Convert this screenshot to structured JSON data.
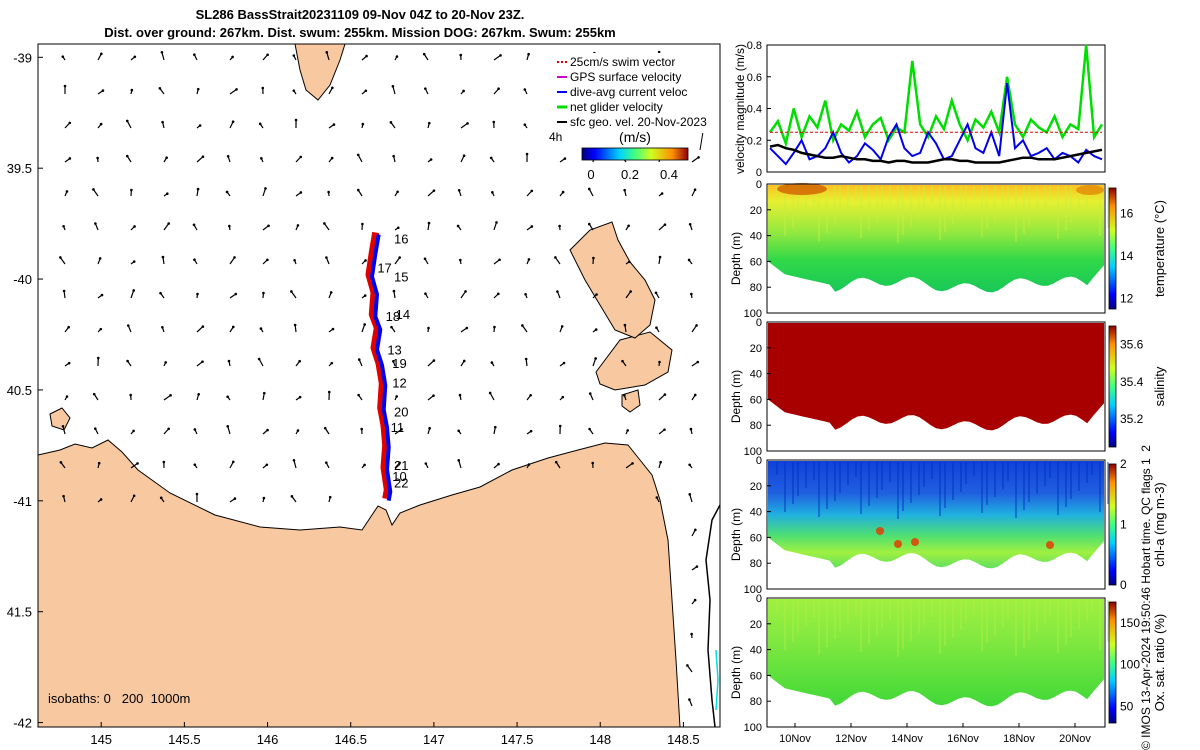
{
  "title": {
    "line1": "SL286 BassStrait20231109 09-Nov 04Z to 20-Nov 23Z.",
    "line2": "Dist. over ground: 267km. Dist. swum: 255km. Mission DOG: 267km. Swum: 255km"
  },
  "credit": "© IMOS 13-Apr-2024 19:50:46 Hobart time. QC flags 1  2",
  "colors": {
    "land": "#f8c8a0",
    "swim": "#e00000",
    "gps": "#cc00cc",
    "dive_avg": "#0000ee",
    "net": "#00dd00",
    "sfc": "#000000",
    "isobath": "#00dddd"
  },
  "chart_data": [
    {
      "type": "map",
      "x_ticks": [
        145,
        145.5,
        146,
        146.5,
        147,
        147.5,
        148,
        148.5
      ],
      "x_tick_labels": [
        "145",
        "145.5",
        "146",
        "146.5",
        "147",
        "147.5",
        "148",
        "148.5"
      ],
      "xlim": [
        144.62,
        148.72
      ],
      "y_ticks": [
        -39,
        -39.5,
        -40,
        -40.5,
        -41,
        -41.5,
        -42
      ],
      "y_tick_labels": [
        "-39",
        "39.5",
        "-40",
        "40.5",
        "-41",
        "41.5",
        "-42"
      ],
      "ylim": [
        -42.02,
        -38.94
      ],
      "legend": {
        "entries": [
          "25cm/s swim vector",
          "GPS surface velocity",
          "dive-avg current veloc",
          "net glider velocity",
          "sfc geo. vel. 20-Nov-2023"
        ],
        "time_label": "4h"
      },
      "colorbar": {
        "label": "(m/s)",
        "ticks": [
          "0",
          "0.2",
          "0.4"
        ],
        "range": [
          0,
          0.5
        ]
      },
      "isobath_label": "isobaths: 0   200  1000m",
      "day_labels": [
        {
          "label": "16",
          "lon": 146.76,
          "lat": -39.84
        },
        {
          "label": "17",
          "lon": 146.66,
          "lat": -39.97
        },
        {
          "label": "15",
          "lon": 146.76,
          "lat": -40.01
        },
        {
          "label": "18",
          "lon": 146.71,
          "lat": -40.19
        },
        {
          "label": "14",
          "lon": 146.77,
          "lat": -40.18
        },
        {
          "label": "13",
          "lon": 146.72,
          "lat": -40.34
        },
        {
          "label": "19",
          "lon": 146.75,
          "lat": -40.4
        },
        {
          "label": "12",
          "lon": 146.75,
          "lat": -40.49
        },
        {
          "label": "20",
          "lon": 146.76,
          "lat": -40.62
        },
        {
          "label": "11",
          "lon": 146.74,
          "lat": -40.69
        },
        {
          "label": "21",
          "lon": 146.76,
          "lat": -40.86
        },
        {
          "label": "10",
          "lon": 146.75,
          "lat": -40.91
        },
        {
          "label": "22",
          "lon": 146.76,
          "lat": -40.94
        }
      ],
      "track": [
        [
          146.65,
          -39.79
        ],
        [
          146.63,
          -39.88
        ],
        [
          146.61,
          -39.98
        ],
        [
          146.64,
          -40.06
        ],
        [
          146.63,
          -40.16
        ],
        [
          146.66,
          -40.22
        ],
        [
          146.64,
          -40.31
        ],
        [
          146.67,
          -40.38
        ],
        [
          146.69,
          -40.47
        ],
        [
          146.68,
          -40.58
        ],
        [
          146.7,
          -40.66
        ],
        [
          146.71,
          -40.75
        ],
        [
          146.7,
          -40.85
        ],
        [
          146.72,
          -40.95
        ],
        [
          146.71,
          -40.99
        ]
      ]
    },
    {
      "type": "line",
      "ylabel": "velocity magnitude (m/s)",
      "ylim": [
        0,
        0.8
      ],
      "y_ticks": [
        "0",
        "0.2",
        "0.4",
        "0.6",
        "0.8"
      ],
      "series": [
        {
          "name": "net glider velocity",
          "values": [
            0.25,
            0.32,
            0.18,
            0.4,
            0.22,
            0.35,
            0.28,
            0.45,
            0.2,
            0.3,
            0.26,
            0.38,
            0.22,
            0.3,
            0.34,
            0.2,
            0.28,
            0.25,
            0.7,
            0.3,
            0.22,
            0.35,
            0.27,
            0.45,
            0.3,
            0.2,
            0.33,
            0.28,
            0.38,
            0.25,
            0.6,
            0.3,
            0.22,
            0.33,
            0.28,
            0.25,
            0.35,
            0.22,
            0.3,
            0.27,
            0.8,
            0.22,
            0.3
          ]
        },
        {
          "name": "dive-avg current veloc",
          "values": [
            0.15,
            0.1,
            0.05,
            0.12,
            0.2,
            0.08,
            0.1,
            0.15,
            0.25,
            0.12,
            0.06,
            0.1,
            0.18,
            0.14,
            0.08,
            0.22,
            0.3,
            0.15,
            0.1,
            0.12,
            0.25,
            0.18,
            0.08,
            0.1,
            0.2,
            0.3,
            0.15,
            0.12,
            0.25,
            0.1,
            0.56,
            0.15,
            0.2,
            0.1,
            0.12,
            0.15,
            0.08,
            0.12,
            0.1,
            0.06,
            0.14,
            0.1,
            0.08
          ]
        },
        {
          "name": "sfc geo. vel.",
          "values": [
            0.16,
            0.17,
            0.15,
            0.14,
            0.12,
            0.11,
            0.1,
            0.09,
            0.09,
            0.1,
            0.09,
            0.08,
            0.08,
            0.07,
            0.07,
            0.06,
            0.07,
            0.07,
            0.06,
            0.06,
            0.06,
            0.07,
            0.08,
            0.08,
            0.07,
            0.07,
            0.06,
            0.06,
            0.06,
            0.06,
            0.07,
            0.08,
            0.09,
            0.09,
            0.08,
            0.08,
            0.08,
            0.09,
            0.1,
            0.11,
            0.12,
            0.13,
            0.14
          ]
        },
        {
          "name": "25cm/s reference",
          "values": [
            0.25,
            0.25
          ]
        }
      ]
    },
    {
      "type": "heatmap",
      "ylabel": "Depth (m)",
      "ylim": [
        0,
        100
      ],
      "y_ticks": [
        "0",
        "20",
        "40",
        "60",
        "80",
        "100"
      ],
      "clabel": "temperature (°C)",
      "c_ticks": [
        "12",
        "14",
        "16"
      ],
      "crange": [
        11.5,
        17.2
      ]
    },
    {
      "type": "heatmap",
      "ylabel": "Depth (m)",
      "ylim": [
        0,
        100
      ],
      "y_ticks": [
        "0",
        "20",
        "40",
        "60",
        "80",
        "100"
      ],
      "clabel": "salinity",
      "c_ticks": [
        "35.2",
        "35.4",
        "35.6"
      ],
      "crange": [
        35.05,
        35.7
      ]
    },
    {
      "type": "heatmap",
      "ylabel": "Depth (m)",
      "ylim": [
        0,
        100
      ],
      "y_ticks": [
        "0",
        "20",
        "40",
        "60",
        "80",
        "100"
      ],
      "clabel": "chl-a (mg m-3)",
      "c_ticks": [
        "0",
        "1",
        "2"
      ],
      "crange": [
        0,
        2
      ]
    },
    {
      "type": "heatmap",
      "ylabel": "Depth (m)",
      "ylim": [
        0,
        100
      ],
      "y_ticks": [
        "0",
        "20",
        "40",
        "60",
        "80",
        "100"
      ],
      "clabel": "Ox. sat. ratio (%)",
      "c_ticks": [
        "50",
        "100",
        "150"
      ],
      "crange": [
        30,
        175
      ],
      "x_ticks": [
        "10Nov",
        "12Nov",
        "14Nov",
        "16Nov",
        "18Nov",
        "20Nov"
      ]
    }
  ]
}
